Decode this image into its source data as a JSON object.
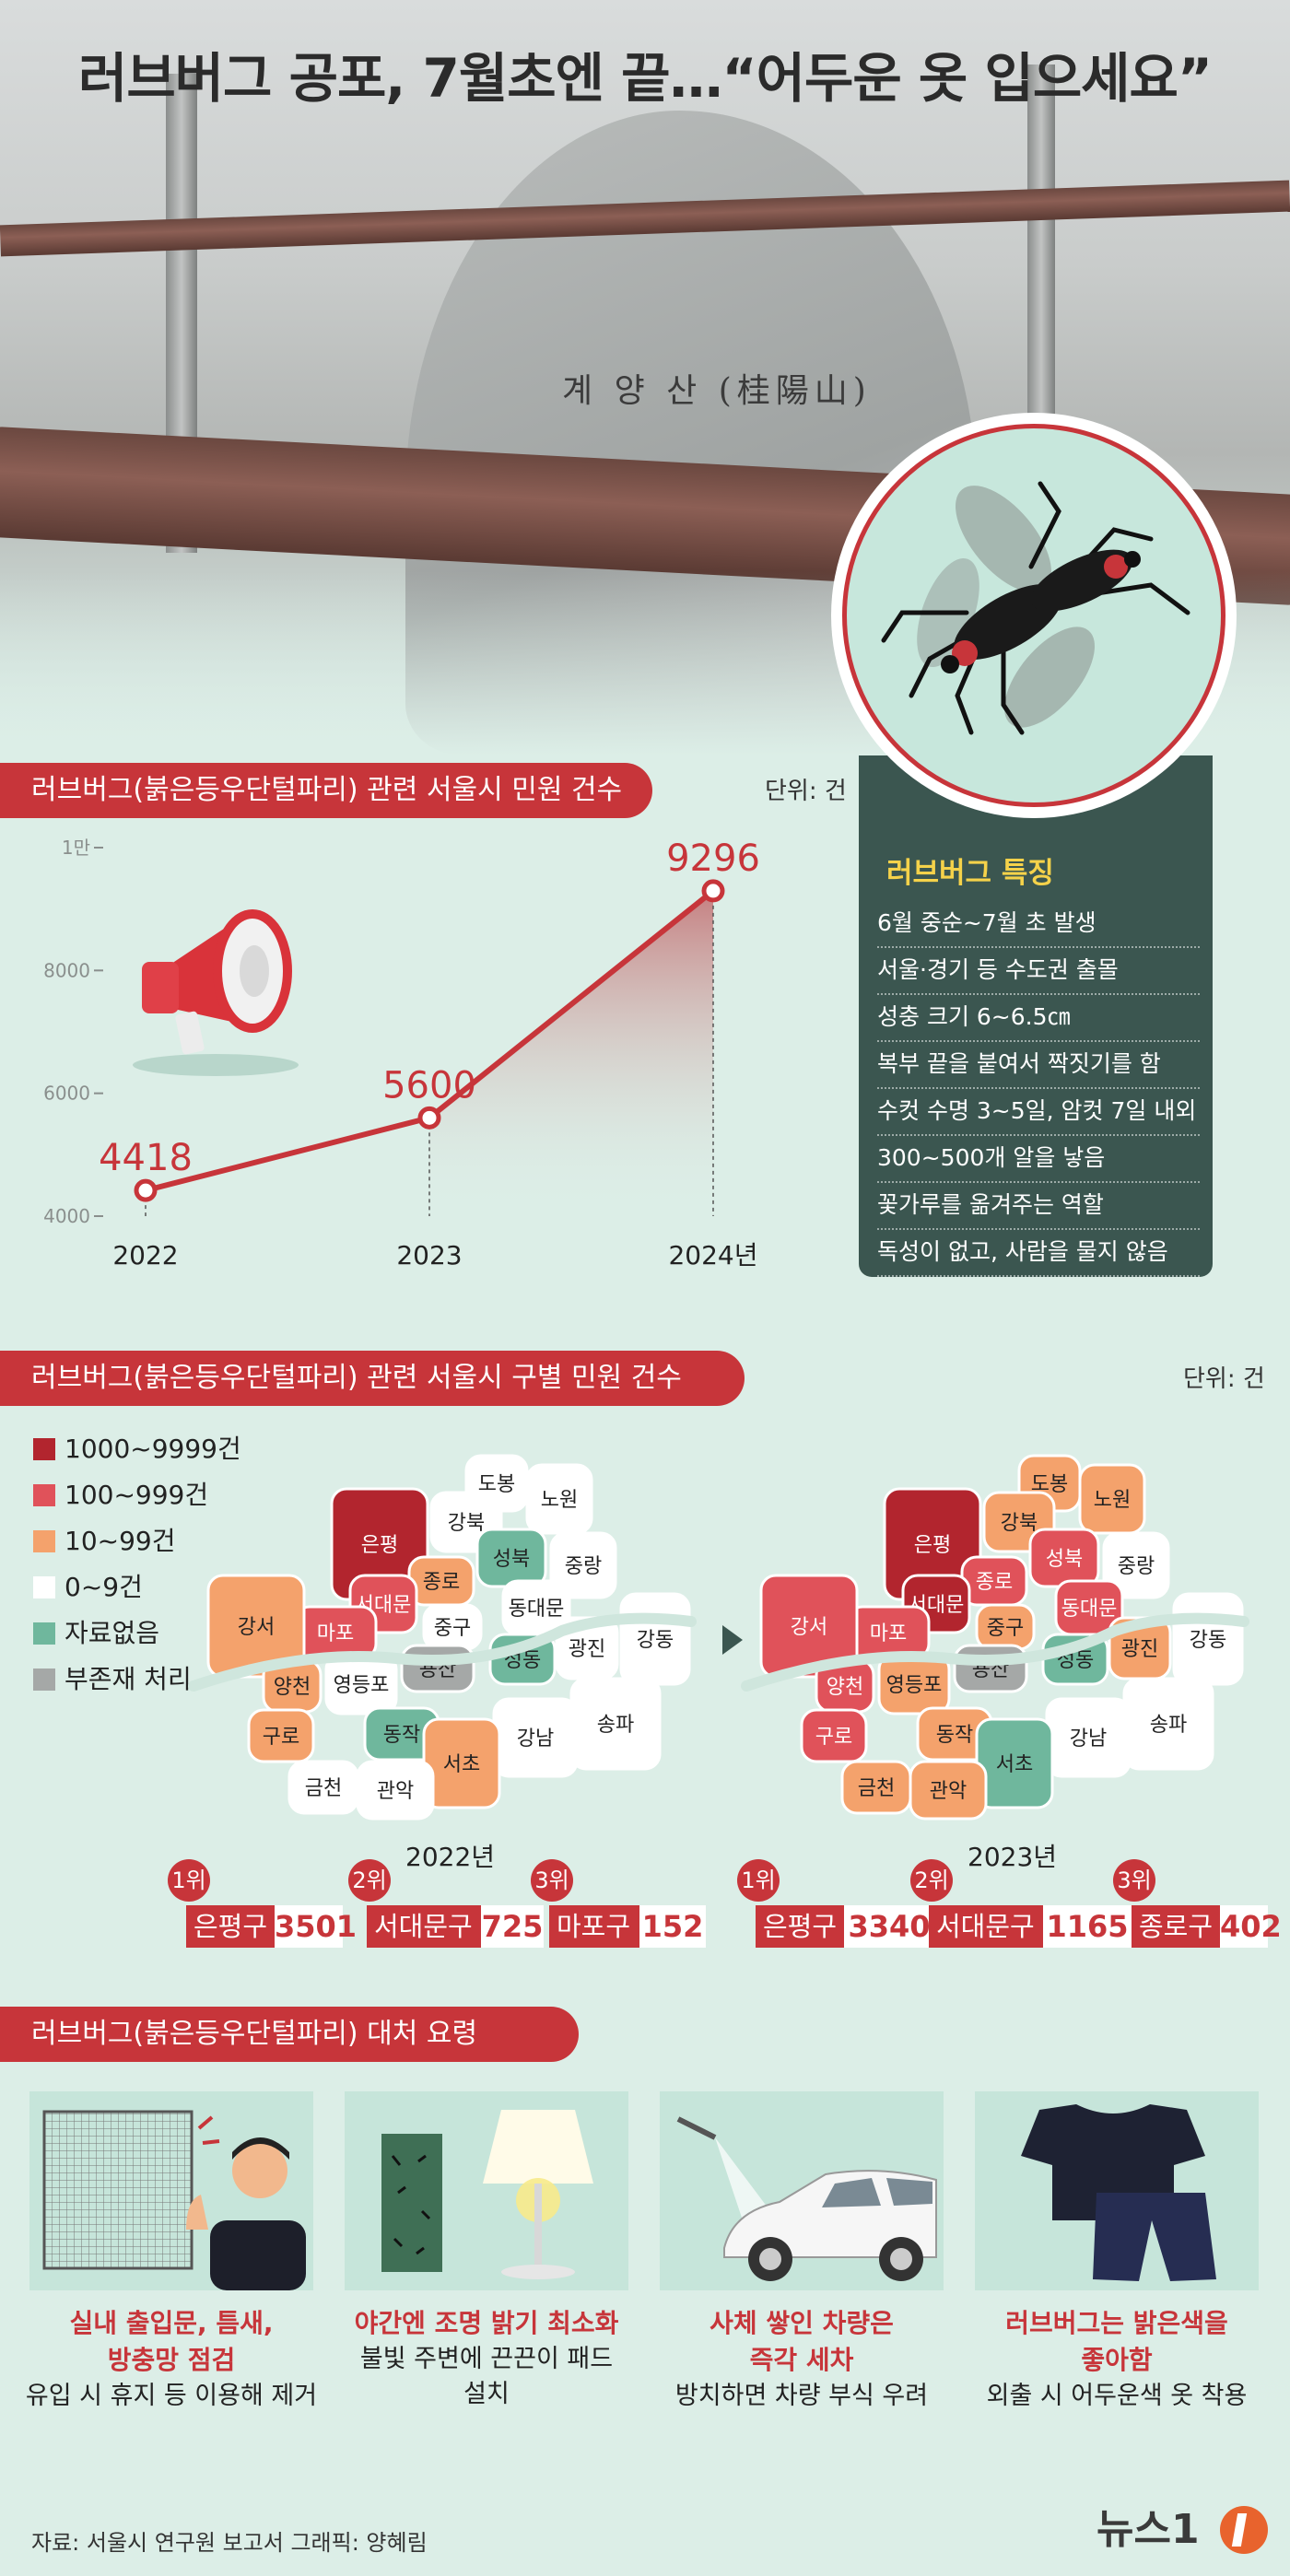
{
  "title": "러브버그 공포, 7월초엔 끝…“어두운 옷 입으세요”",
  "hero": {
    "rock_text": "계 양 산 (桂陽山)"
  },
  "colors": {
    "accent": "#c7353a",
    "panel": "#3b5650",
    "background": "#dceee7",
    "highlight": "#f5d24a"
  },
  "section1": {
    "title": "러브버그(붉은등우단털파리) 관련 서울시 민원 건수",
    "unit": "단위: 건"
  },
  "chart_data": {
    "type": "line",
    "title": "러브버그(붉은등우단털파리) 관련 서울시 민원 건수",
    "categories": [
      "2022",
      "2023",
      "2024년"
    ],
    "values": [
      4418,
      5600,
      9296
    ],
    "value_labels": [
      "4418",
      "5600",
      "9296"
    ],
    "y_ticks": [
      "4000",
      "6000",
      "8000",
      "1만"
    ],
    "y_tick_values": [
      4000,
      6000,
      8000,
      10000
    ],
    "ylim": [
      4000,
      10000
    ],
    "grid": false,
    "unit": "단위: 건"
  },
  "features": {
    "title": "러브버그 특징",
    "items": [
      "6월 중순~7월 초 발생",
      "서울·경기 등 수도권 출몰",
      "성충 크기 6~6.5㎝",
      "복부 끝을 붙여서 짝짓기를 함",
      "수컷 수명 3~5일, 암컷 7일 내외",
      "300~500개 알을 낳음",
      "꽃가루를 옮겨주는 역할",
      "독성이 없고, 사람을 물지 않음"
    ]
  },
  "section2": {
    "title": "러브버그(붉은등우단털파리) 관련 서울시 구별 민원 건수",
    "unit": "단위: 건"
  },
  "legend": [
    {
      "label": "1000~9999건",
      "color": "#b2252e"
    },
    {
      "label": "100~999건",
      "color": "#e0525a"
    },
    {
      "label": "10~99건",
      "color": "#f4a26c"
    },
    {
      "label": "0~9건",
      "color": "#ffffff"
    },
    {
      "label": "자료없음",
      "color": "#6fb79d"
    },
    {
      "label": "부존재 처리",
      "color": "#a5a8a7"
    }
  ],
  "maps": [
    {
      "year": "2022년",
      "districts": [
        {
          "name": "도봉",
          "level": 3
        },
        {
          "name": "노원",
          "level": 3
        },
        {
          "name": "강북",
          "level": 3
        },
        {
          "name": "은평",
          "level": 0
        },
        {
          "name": "성북",
          "level": 4
        },
        {
          "name": "중랑",
          "level": 3
        },
        {
          "name": "종로",
          "level": 2
        },
        {
          "name": "동대문",
          "level": 3
        },
        {
          "name": "서대문",
          "level": 1
        },
        {
          "name": "마포",
          "level": 1
        },
        {
          "name": "중구",
          "level": 3
        },
        {
          "name": "성동",
          "level": 4
        },
        {
          "name": "광진",
          "level": 3
        },
        {
          "name": "강동",
          "level": 3
        },
        {
          "name": "강서",
          "level": 2
        },
        {
          "name": "용산",
          "level": 5
        },
        {
          "name": "양천",
          "level": 2
        },
        {
          "name": "영등포",
          "level": 3
        },
        {
          "name": "구로",
          "level": 2
        },
        {
          "name": "동작",
          "level": 4
        },
        {
          "name": "송파",
          "level": 3
        },
        {
          "name": "강남",
          "level": 3
        },
        {
          "name": "서초",
          "level": 2
        },
        {
          "name": "금천",
          "level": 3
        },
        {
          "name": "관악",
          "level": 3
        }
      ],
      "ranks": [
        {
          "rank": "1위",
          "district": "은평구",
          "count": "3501"
        },
        {
          "rank": "2위",
          "district": "서대문구",
          "count": "725"
        },
        {
          "rank": "3위",
          "district": "마포구",
          "count": "152"
        }
      ]
    },
    {
      "year": "2023년",
      "districts": [
        {
          "name": "도봉",
          "level": 2
        },
        {
          "name": "노원",
          "level": 2
        },
        {
          "name": "강북",
          "level": 2
        },
        {
          "name": "은평",
          "level": 0
        },
        {
          "name": "성북",
          "level": 1
        },
        {
          "name": "중랑",
          "level": 3
        },
        {
          "name": "종로",
          "level": 1
        },
        {
          "name": "동대문",
          "level": 1
        },
        {
          "name": "서대문",
          "level": 0
        },
        {
          "name": "마포",
          "level": 1
        },
        {
          "name": "중구",
          "level": 2
        },
        {
          "name": "성동",
          "level": 4
        },
        {
          "name": "광진",
          "level": 2
        },
        {
          "name": "강동",
          "level": 3
        },
        {
          "name": "강서",
          "level": 1
        },
        {
          "name": "용산",
          "level": 5
        },
        {
          "name": "양천",
          "level": 1
        },
        {
          "name": "영등포",
          "level": 2
        },
        {
          "name": "구로",
          "level": 1
        },
        {
          "name": "동작",
          "level": 2
        },
        {
          "name": "송파",
          "level": 3
        },
        {
          "name": "강남",
          "level": 3
        },
        {
          "name": "서초",
          "level": 4
        },
        {
          "name": "금천",
          "level": 2
        },
        {
          "name": "관악",
          "level": 2
        }
      ],
      "ranks": [
        {
          "rank": "1위",
          "district": "은평구",
          "count": "3340"
        },
        {
          "rank": "2위",
          "district": "서대문구",
          "count": "1165"
        },
        {
          "rank": "3위",
          "district": "종로구",
          "count": "402"
        }
      ]
    }
  ],
  "section3": {
    "title": "러브버그(붉은등우단털파리) 대처 요령"
  },
  "tips": [
    {
      "head": [
        "실내 출입문, 틈새,",
        "방충망 점검"
      ],
      "desc": [
        "유입 시 휴지 등 이용해 제거"
      ],
      "icon": "window-screen-icon"
    },
    {
      "head": [
        "야간엔 조명 밝기 최소화"
      ],
      "desc": [
        "불빛 주변에 끈끈이 패드",
        "설치"
      ],
      "icon": "lamp-icon"
    },
    {
      "head": [
        "사체 쌓인 차량은",
        "즉각 세차"
      ],
      "desc": [
        "방치하면 차량 부식 우려"
      ],
      "icon": "car-wash-icon"
    },
    {
      "head": [
        "러브버그는 밝은색을",
        "좋아함"
      ],
      "desc": [
        "외출 시 어두운색 옷 착용"
      ],
      "icon": "dark-clothes-icon"
    }
  ],
  "footer": {
    "source": "자료: 서울시 연구원 보고서  그래픽: 양혜림",
    "logo": "뉴스1"
  }
}
